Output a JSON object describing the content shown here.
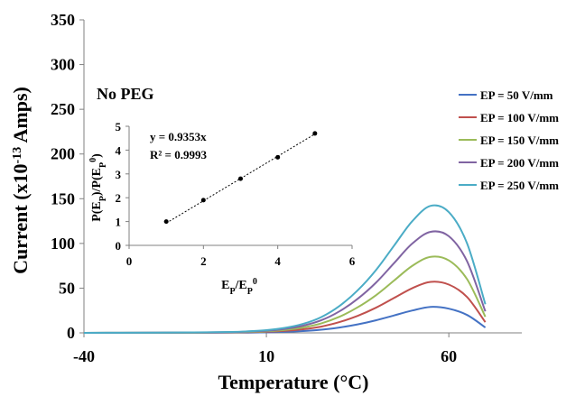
{
  "chart_data": [
    {
      "type": "line",
      "xlabel": "Temperature (°C)",
      "ylabel": "Current (x10",
      "ylabel_sup": "-13",
      "ylabel_tail": " Amps)",
      "xlim": [
        -40,
        80
      ],
      "ylim": [
        0,
        350
      ],
      "x_ticks": [
        "-40",
        "10",
        "60"
      ],
      "x_tick_values": [
        -40,
        10,
        60
      ],
      "y_ticks": [
        "0",
        "50",
        "100",
        "150",
        "200",
        "250",
        "300",
        "350"
      ],
      "y_tick_values": [
        0,
        50,
        100,
        150,
        200,
        250,
        300,
        350
      ],
      "annotation": "No PEG",
      "legend_position": "right",
      "x": [
        -40,
        -30,
        -20,
        -10,
        0,
        5,
        10,
        15,
        20,
        25,
        30,
        35,
        40,
        45,
        50,
        55,
        60,
        65,
        70
      ],
      "series": [
        {
          "name": "EP = 50 V/mm",
          "color": "#4472C4",
          "values": [
            0,
            0.03,
            0.05,
            0.1,
            0.2,
            0.35,
            0.6,
            1.1,
            2,
            3.5,
            6,
            9.5,
            14,
            19.5,
            25,
            29,
            27,
            20,
            6
          ]
        },
        {
          "name": "EP = 100 V/mm",
          "color": "#C0504D",
          "values": [
            0,
            0.05,
            0.1,
            0.2,
            0.4,
            0.7,
            1.2,
            2.2,
            4,
            7,
            12,
            19,
            28,
            39,
            50,
            57,
            54,
            40,
            12
          ]
        },
        {
          "name": "EP = 150 V/mm",
          "color": "#9BBB59",
          "values": [
            0,
            0.08,
            0.15,
            0.3,
            0.6,
            1.05,
            1.8,
            3.3,
            6,
            10.5,
            18,
            28.5,
            42,
            58.5,
            75,
            85,
            81,
            60,
            18
          ]
        },
        {
          "name": "EP = 200 V/mm",
          "color": "#8064A2",
          "values": [
            0,
            0.1,
            0.2,
            0.4,
            0.8,
            1.4,
            2.4,
            4.4,
            8,
            14,
            24,
            38,
            56,
            78,
            100,
            113,
            108,
            80,
            24
          ]
        },
        {
          "name": "EP = 250 V/mm",
          "color": "#4BACC6",
          "values": [
            0,
            0.13,
            0.25,
            0.5,
            1,
            1.75,
            3,
            5.5,
            10,
            17.5,
            30,
            47.5,
            70,
            97.5,
            125,
            142,
            135,
            100,
            32
          ]
        }
      ]
    },
    {
      "type": "scatter",
      "xlabel": "E",
      "xlabel_sub": "P",
      "xlabel_mid": "/E",
      "xlabel_sub2": "P",
      "xlabel_sup2": "0",
      "ylabel": "P(E",
      "ylabel_sub": "P",
      "ylabel_mid": ")/P(E",
      "ylabel_sub2": "P",
      "ylabel_sup2": "0",
      "ylabel_end": ")",
      "xlim": [
        0,
        6
      ],
      "ylim": [
        0,
        5
      ],
      "x_ticks": [
        "0",
        "2",
        "4",
        "6"
      ],
      "x_tick_values": [
        0,
        2,
        4,
        6
      ],
      "y_ticks": [
        "0",
        "1",
        "2",
        "3",
        "4",
        "5"
      ],
      "y_tick_values": [
        0,
        1,
        2,
        3,
        4,
        5
      ],
      "x": [
        1,
        2,
        3,
        4,
        5
      ],
      "y": [
        1,
        1.9,
        2.8,
        3.7,
        4.7
      ],
      "trendline_slope": 0.9353,
      "equation": "y = 0.9353x",
      "r2": "R² = 0.9993"
    }
  ]
}
